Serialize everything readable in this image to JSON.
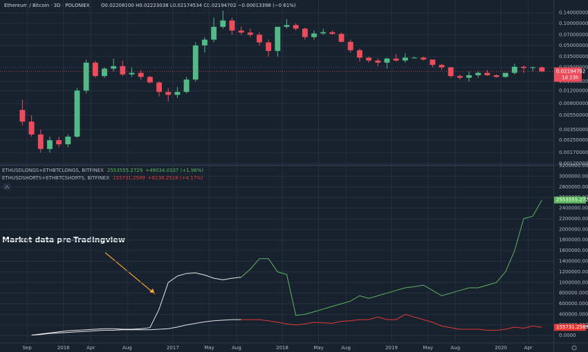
{
  "chart_data": [
    {
      "type": "candlestick",
      "title": "Ethereum / Bitcoin · 3D · POLONIEX",
      "ohlc_label": "O0.02208100 H0.02223038 L0.02174534 C0.02194702 −0.00013398 (−0.61%)",
      "countdown_label": "1d 23h",
      "up_color": "#53b987",
      "down_color": "#eb4d5c",
      "log_scale": true,
      "grid": true,
      "xlim": [
        2015.42,
        2020.48
      ],
      "ylim": [
        0.00117,
        0.21
      ],
      "yticks": [
        {
          "value": 0.0012,
          "label": "0.00120000"
        },
        {
          "value": 0.0017,
          "label": "0.00170000"
        },
        {
          "value": 0.0025,
          "label": "0.00250000"
        },
        {
          "value": 0.0035,
          "label": "0.00350000"
        },
        {
          "value": 0.0055,
          "label": "0.00550000"
        },
        {
          "value": 0.008,
          "label": "0.00800000"
        },
        {
          "value": 0.012,
          "label": "0.01200000"
        },
        {
          "value": 0.016,
          "label": "0.01600000"
        },
        {
          "value": 0.025,
          "label": "0.02500000"
        },
        {
          "value": 0.035,
          "label": "0.03500000"
        },
        {
          "value": 0.05,
          "label": "0.05000000"
        },
        {
          "value": 0.07,
          "label": "0.07000000"
        },
        {
          "value": 0.1,
          "label": "0.10000000"
        },
        {
          "value": 0.14,
          "label": "0.14000000"
        }
      ],
      "x": [
        "2015-08",
        "2015-09",
        "2015-10",
        "2015-11",
        "2015-12",
        "2016-01",
        "2016-02",
        "2016-03",
        "2016-04",
        "2016-05",
        "2016-06",
        "2016-07",
        "2016-08",
        "2016-09",
        "2016-10",
        "2016-11",
        "2016-12",
        "2017-01",
        "2017-02",
        "2017-03",
        "2017-04",
        "2017-05",
        "2017-06",
        "2017-07",
        "2017-08",
        "2017-09",
        "2017-10",
        "2017-11",
        "2017-12",
        "2018-01",
        "2018-02",
        "2018-03",
        "2018-04",
        "2018-05",
        "2018-06",
        "2018-07",
        "2018-08",
        "2018-09",
        "2018-10",
        "2018-11",
        "2018-12",
        "2019-01",
        "2019-02",
        "2019-03",
        "2019-04",
        "2019-05",
        "2019-06",
        "2019-07",
        "2019-08",
        "2019-09",
        "2019-10",
        "2019-11",
        "2019-12",
        "2020-01",
        "2020-02",
        "2020-03",
        "2020-04",
        "2020-05"
      ],
      "open": [
        0.0065,
        0.0045,
        0.003,
        0.0019,
        0.0025,
        0.0022,
        0.0028,
        0.012,
        0.029,
        0.019,
        0.024,
        0.026,
        0.02,
        0.021,
        0.0185,
        0.0155,
        0.0115,
        0.0105,
        0.0115,
        0.017,
        0.05,
        0.06,
        0.09,
        0.11,
        0.08,
        0.075,
        0.07,
        0.055,
        0.042,
        0.09,
        0.095,
        0.085,
        0.065,
        0.073,
        0.076,
        0.072,
        0.056,
        0.043,
        0.034,
        0.031,
        0.029,
        0.033,
        0.031,
        0.034,
        0.034,
        0.032,
        0.027,
        0.025,
        0.019,
        0.018,
        0.0195,
        0.021,
        0.0195,
        0.0185,
        0.021,
        0.0255,
        0.0245,
        0.025
      ],
      "high": [
        0.009,
        0.0055,
        0.0035,
        0.0028,
        0.0028,
        0.003,
        0.013,
        0.032,
        0.031,
        0.025,
        0.033,
        0.031,
        0.025,
        0.023,
        0.019,
        0.016,
        0.013,
        0.0135,
        0.0185,
        0.055,
        0.065,
        0.12,
        0.15,
        0.12,
        0.09,
        0.085,
        0.075,
        0.06,
        0.09,
        0.115,
        0.1,
        0.088,
        0.08,
        0.085,
        0.08,
        0.075,
        0.06,
        0.045,
        0.035,
        0.033,
        0.034,
        0.038,
        0.039,
        0.035,
        0.035,
        0.032,
        0.028,
        0.0255,
        0.02,
        0.022,
        0.022,
        0.023,
        0.02,
        0.021,
        0.028,
        0.0265,
        0.026,
        0.026
      ],
      "low": [
        0.004,
        0.0028,
        0.0017,
        0.0017,
        0.002,
        0.002,
        0.0027,
        0.011,
        0.018,
        0.018,
        0.022,
        0.019,
        0.0185,
        0.017,
        0.015,
        0.01,
        0.0085,
        0.0095,
        0.011,
        0.016,
        0.04,
        0.055,
        0.085,
        0.07,
        0.07,
        0.065,
        0.05,
        0.035,
        0.035,
        0.085,
        0.08,
        0.06,
        0.06,
        0.07,
        0.07,
        0.055,
        0.04,
        0.03,
        0.029,
        0.026,
        0.024,
        0.03,
        0.029,
        0.033,
        0.031,
        0.025,
        0.023,
        0.018,
        0.017,
        0.016,
        0.018,
        0.019,
        0.018,
        0.018,
        0.02,
        0.021,
        0.022,
        0.0215
      ],
      "close": [
        0.0045,
        0.003,
        0.0019,
        0.0025,
        0.0022,
        0.0028,
        0.012,
        0.029,
        0.019,
        0.024,
        0.026,
        0.02,
        0.021,
        0.0185,
        0.0155,
        0.0115,
        0.0105,
        0.0115,
        0.017,
        0.05,
        0.06,
        0.09,
        0.11,
        0.08,
        0.075,
        0.07,
        0.055,
        0.042,
        0.09,
        0.095,
        0.085,
        0.065,
        0.073,
        0.076,
        0.072,
        0.056,
        0.043,
        0.034,
        0.031,
        0.029,
        0.033,
        0.031,
        0.034,
        0.034,
        0.032,
        0.027,
        0.025,
        0.019,
        0.018,
        0.0195,
        0.021,
        0.0195,
        0.0185,
        0.021,
        0.0255,
        0.0245,
        0.025,
        0.02194702
      ]
    },
    {
      "type": "line",
      "annotation": "Market data pre-Tradingview",
      "grid": true,
      "xlim": [
        2015.42,
        2020.48
      ],
      "xticks": [
        {
          "value": 2015.667,
          "label": "Sep"
        },
        2016,
        {
          "value": 2016.25,
          "label": "Apr"
        },
        {
          "value": 2016.583,
          "label": "Aug"
        },
        2017,
        {
          "value": 2017.333,
          "label": "May"
        },
        {
          "value": 2017.583,
          "label": "Aug"
        },
        2018,
        {
          "value": 2018.333,
          "label": "May"
        },
        {
          "value": 2018.583,
          "label": "Aug"
        },
        2019,
        {
          "value": 2019.333,
          "label": "May"
        },
        {
          "value": 2019.583,
          "label": "Aug"
        },
        2020,
        {
          "value": 2020.25,
          "label": "Apr"
        }
      ],
      "ylim": [
        -140000,
        3200000
      ],
      "yticks": [
        {
          "value": 0,
          "label": "0.0000"
        },
        {
          "value": 200000,
          "label": "200000.0000"
        },
        {
          "value": 400000,
          "label": "400000.0000"
        },
        {
          "value": 600000,
          "label": "600000.0000"
        },
        {
          "value": 800000,
          "label": "800000.0000"
        },
        {
          "value": 1000000,
          "label": "1000000.0000"
        },
        {
          "value": 1200000,
          "label": "1200000.0000"
        },
        {
          "value": 1400000,
          "label": "1400000.0000"
        },
        {
          "value": 1600000,
          "label": "1600000.0000"
        },
        {
          "value": 1800000,
          "label": "1800000.0000"
        },
        {
          "value": 2000000,
          "label": "2000000.0000"
        },
        {
          "value": 2200000,
          "label": "2200000.0000"
        },
        {
          "value": 2400000,
          "label": "2400000.0000"
        },
        {
          "value": 2600000,
          "label": "2600000.0000"
        },
        {
          "value": 2800000,
          "label": "2800000.0000"
        },
        {
          "value": 3000000,
          "label": "3000000.0000"
        },
        {
          "value": 3200000,
          "label": "3200000.0000"
        }
      ],
      "x": [
        "2015-09",
        "2015-10",
        "2015-11",
        "2015-12",
        "2016-01",
        "2016-02",
        "2016-03",
        "2016-04",
        "2016-05",
        "2016-06",
        "2016-07",
        "2016-08",
        "2016-09",
        "2016-10",
        "2016-11",
        "2016-12",
        "2017-01",
        "2017-02",
        "2017-03",
        "2017-04",
        "2017-05",
        "2017-06",
        "2017-07",
        "2017-08",
        "2017-09",
        "2017-10",
        "2017-11",
        "2017-12",
        "2018-01",
        "2018-02",
        "2018-03",
        "2018-04",
        "2018-05",
        "2018-06",
        "2018-07",
        "2018-08",
        "2018-09",
        "2018-10",
        "2018-11",
        "2018-12",
        "2019-01",
        "2019-02",
        "2019-03",
        "2019-04",
        "2019-05",
        "2019-06",
        "2019-07",
        "2019-08",
        "2019-09",
        "2019-10",
        "2019-11",
        "2019-12",
        "2020-01",
        "2020-02",
        "2020-03",
        "2020-04",
        "2020-05"
      ],
      "series": [
        {
          "color": "#e8e8e8",
          "values": [
            10000,
            30000,
            50000,
            70000,
            90000,
            100000,
            110000,
            120000,
            130000,
            130000,
            120000,
            120000,
            130000,
            150000,
            500000,
            1000000,
            1120000,
            1170000,
            1180000,
            1140000,
            1080000,
            1050000,
            1080000,
            1100000,
            null,
            null,
            null,
            null,
            null,
            null,
            null,
            null,
            null,
            null,
            null,
            null,
            null,
            null,
            null,
            null,
            null,
            null,
            null,
            null,
            null,
            null,
            null,
            null,
            null,
            null,
            null,
            null,
            null,
            null,
            null,
            null,
            null
          ]
        },
        {
          "color": "#e8e8e8",
          "values": [
            10000,
            20000,
            40000,
            50000,
            60000,
            70000,
            80000,
            90000,
            100000,
            100000,
            110000,
            110000,
            110000,
            110000,
            120000,
            130000,
            160000,
            200000,
            230000,
            260000,
            280000,
            290000,
            300000,
            300000,
            null,
            null,
            null,
            null,
            null,
            null,
            null,
            null,
            null,
            null,
            null,
            null,
            null,
            null,
            null,
            null,
            null,
            null,
            null,
            null,
            null,
            null,
            null,
            null,
            null,
            null,
            null,
            null,
            null,
            null,
            null,
            null,
            null
          ]
        },
        {
          "name": "ETHUSDLONGS+ETHBTCLONGS, BITFINEX",
          "change_label": "+49034.0337 (+1.96%)",
          "color": "#5cb85c",
          "values": [
            null,
            null,
            null,
            null,
            null,
            null,
            null,
            null,
            null,
            null,
            null,
            null,
            null,
            null,
            null,
            null,
            null,
            null,
            null,
            null,
            null,
            null,
            null,
            1100000,
            1250000,
            1450000,
            1450000,
            1200000,
            1150000,
            380000,
            400000,
            450000,
            500000,
            550000,
            600000,
            650000,
            750000,
            700000,
            750000,
            800000,
            850000,
            900000,
            920000,
            950000,
            850000,
            750000,
            800000,
            850000,
            900000,
            900000,
            950000,
            1000000,
            1200000,
            1600000,
            2200000,
            2250000,
            2553555.2729
          ]
        },
        {
          "name": "ETHUSDSHORTS+ETHBTCSHORTS, BITFINEX",
          "change_label": "+6238.2518 (+4.17%)",
          "color": "#e53935",
          "values": [
            null,
            null,
            null,
            null,
            null,
            null,
            null,
            null,
            null,
            null,
            null,
            null,
            null,
            null,
            null,
            null,
            null,
            null,
            null,
            null,
            null,
            null,
            null,
            300000,
            300000,
            300000,
            280000,
            250000,
            220000,
            200000,
            220000,
            250000,
            240000,
            230000,
            270000,
            280000,
            300000,
            300000,
            350000,
            300000,
            300000,
            400000,
            350000,
            300000,
            250000,
            180000,
            150000,
            120000,
            120000,
            120000,
            100000,
            100000,
            120000,
            160000,
            140000,
            180000,
            155731.2589
          ]
        }
      ]
    }
  ]
}
